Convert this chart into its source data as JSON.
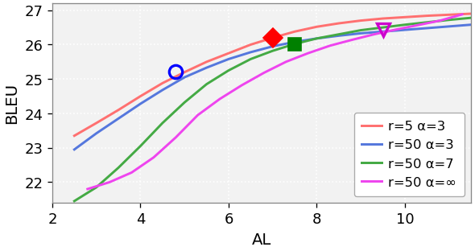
{
  "title": "",
  "xlabel": "AL",
  "ylabel": "BLEU",
  "xlim": [
    2,
    11.5
  ],
  "ylim": [
    21.4,
    27.2
  ],
  "xticks": [
    2,
    4,
    6,
    8,
    10
  ],
  "yticks": [
    22,
    23,
    24,
    25,
    26,
    27
  ],
  "series": [
    {
      "label": "r=5 α=3",
      "color": "#FF7070",
      "x": [
        2.5,
        3.0,
        3.5,
        4.0,
        4.5,
        5.0,
        5.5,
        6.0,
        6.5,
        7.0,
        7.5,
        8.0,
        8.5,
        9.0,
        9.5,
        10.0,
        10.5,
        11.0,
        11.5
      ],
      "y": [
        23.35,
        23.72,
        24.1,
        24.5,
        24.88,
        25.2,
        25.5,
        25.75,
        26.0,
        26.2,
        26.38,
        26.52,
        26.62,
        26.7,
        26.76,
        26.8,
        26.84,
        26.87,
        26.9
      ],
      "marker": "D",
      "marker_x": 7.0,
      "marker_y": 26.2,
      "marker_color": "red"
    },
    {
      "label": "r=50 α=3",
      "color": "#5577DD",
      "x": [
        2.5,
        3.0,
        3.5,
        4.0,
        4.5,
        5.0,
        5.5,
        6.0,
        6.5,
        7.0,
        7.5,
        8.0,
        8.5,
        9.0,
        9.5,
        10.0,
        10.5,
        11.0,
        11.5
      ],
      "y": [
        22.95,
        23.42,
        23.85,
        24.28,
        24.68,
        25.05,
        25.33,
        25.58,
        25.78,
        25.95,
        26.08,
        26.18,
        26.26,
        26.33,
        26.38,
        26.43,
        26.48,
        26.53,
        26.58
      ],
      "marker": "o",
      "marker_x": 4.8,
      "marker_y": 25.22,
      "marker_color": "blue"
    },
    {
      "label": "r=50 α=7",
      "color": "#44AA44",
      "x": [
        2.5,
        3.0,
        3.5,
        4.0,
        4.5,
        5.0,
        5.5,
        6.0,
        6.5,
        7.0,
        7.5,
        8.0,
        8.5,
        9.0,
        9.5,
        10.0,
        10.5,
        11.0,
        11.5
      ],
      "y": [
        21.45,
        21.85,
        22.42,
        23.05,
        23.72,
        24.32,
        24.85,
        25.25,
        25.58,
        25.82,
        26.02,
        26.18,
        26.3,
        26.42,
        26.5,
        26.58,
        26.65,
        26.72,
        26.78
      ],
      "marker": "s",
      "marker_x": 7.5,
      "marker_y": 26.02,
      "marker_color": "green"
    },
    {
      "label": "r=50 α=∞",
      "color": "#EE44EE",
      "x": [
        2.8,
        3.3,
        3.8,
        4.3,
        4.8,
        5.3,
        5.8,
        6.3,
        6.8,
        7.3,
        7.8,
        8.3,
        8.8,
        9.3,
        9.8,
        10.3,
        10.8,
        11.3
      ],
      "y": [
        21.8,
        22.0,
        22.28,
        22.72,
        23.3,
        23.95,
        24.42,
        24.82,
        25.18,
        25.5,
        25.75,
        25.97,
        26.14,
        26.3,
        26.44,
        26.57,
        26.7,
        26.88
      ],
      "marker": "v",
      "marker_x": 9.5,
      "marker_y": 26.44,
      "marker_color": "#CC00CC"
    }
  ],
  "background_color": "#f2f2f2",
  "grid_color": "white",
  "legend_fontsize": 10,
  "axis_fontsize": 12,
  "tick_fontsize": 11
}
